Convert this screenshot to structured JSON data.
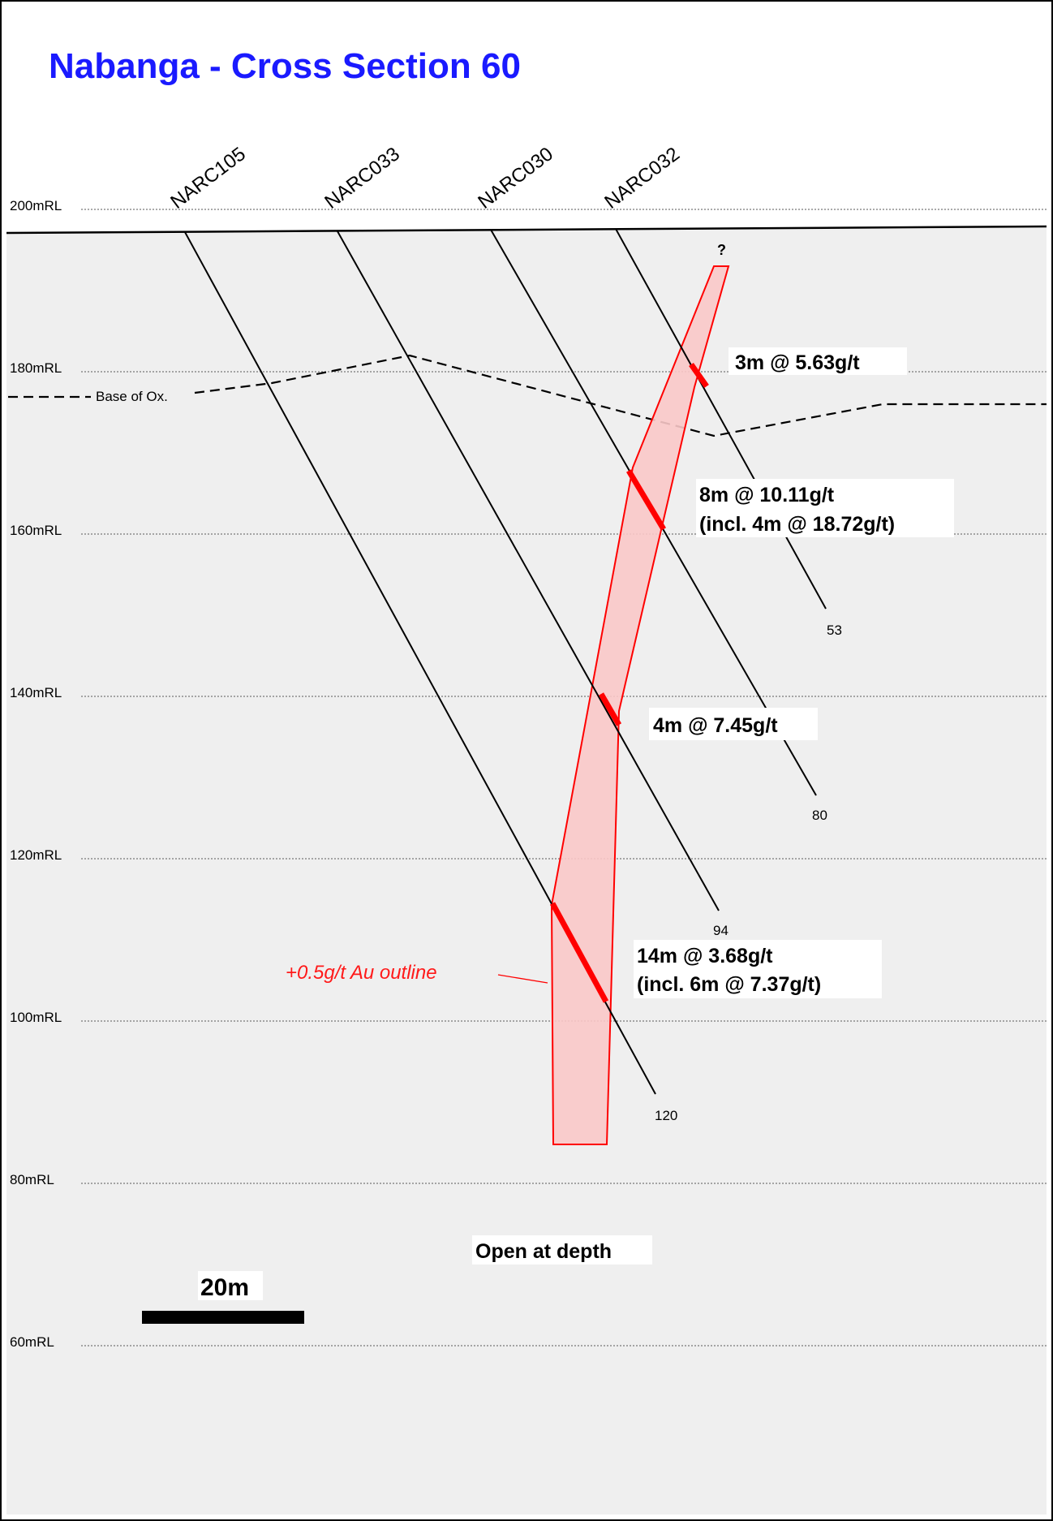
{
  "title": "Nabanga - Cross Section 60",
  "levels": [
    {
      "label": "200mRL",
      "rl": 200
    },
    {
      "label": "180mRL",
      "rl": 180
    },
    {
      "label": "160mRL",
      "rl": 160
    },
    {
      "label": "140mRL",
      "rl": 140
    },
    {
      "label": "120mRL",
      "rl": 120
    },
    {
      "label": "100mRL",
      "rl": 100
    },
    {
      "label": "80mRL",
      "rl": 80
    },
    {
      "label": "60mRL",
      "rl": 60
    }
  ],
  "drillholes": [
    {
      "name": "NARC105",
      "end_depth": null
    },
    {
      "name": "NARC033",
      "end_depth": "120"
    },
    {
      "name": "NARC030",
      "end_depth": "94"
    },
    {
      "name": "NARC032",
      "end_depth": "80"
    },
    {
      "name": "",
      "end_depth": "53"
    }
  ],
  "intercepts": [
    {
      "line1": "3m @ 5.63g/t",
      "line2": ""
    },
    {
      "line1": "8m @ 10.11g/t",
      "line2": "(incl. 4m @ 18.72g/t)"
    },
    {
      "line1": "4m @ 7.45g/t",
      "line2": ""
    },
    {
      "line1": "14m @ 3.68g/t",
      "line2": "(incl. 6m @ 7.37g/t)"
    }
  ],
  "base_of_oxidation_label": "Base of Ox.",
  "outline_label": "+0.5g/t Au outline",
  "unknown_marker": "?",
  "note": "Open at depth",
  "scale_bar": {
    "label": "20m",
    "length_m": 20
  },
  "colors": {
    "title": "#1a1aff",
    "background_rock": "#efefef",
    "outline_fill": "#f9c8c8",
    "outline_stroke": "#ff0000",
    "intercept": "#ff0000"
  }
}
